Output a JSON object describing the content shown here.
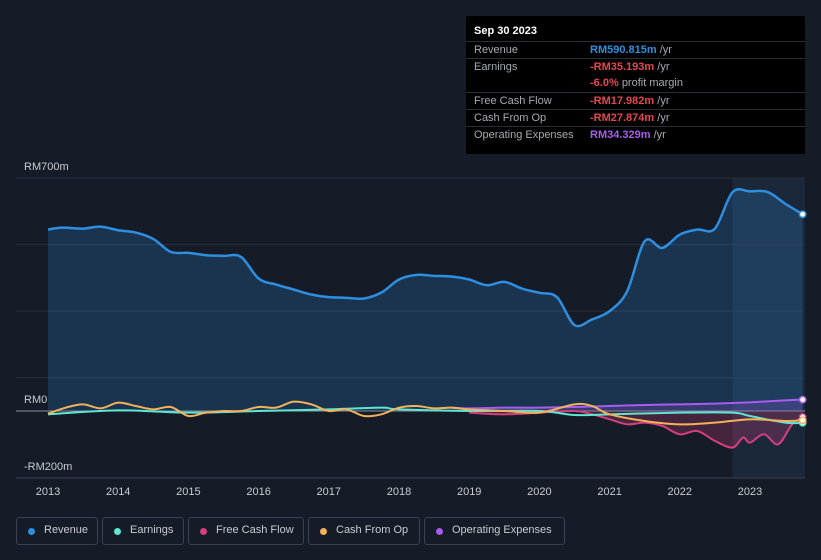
{
  "tooltip": {
    "date": "Sep 30 2023",
    "rows": [
      {
        "label": "Revenue",
        "value": "RM590.815m",
        "unit": "/yr",
        "color": "#2e8fe0"
      },
      {
        "label": "Earnings",
        "value": "-RM35.193m",
        "unit": "/yr",
        "color": "#e5484d"
      },
      {
        "label": "",
        "value": "-6.0%",
        "unit": "profit margin",
        "color": "#e5484d"
      },
      {
        "label": "Free Cash Flow",
        "value": "-RM17.982m",
        "unit": "/yr",
        "color": "#e5484d"
      },
      {
        "label": "Cash From Op",
        "value": "-RM27.874m",
        "unit": "/yr",
        "color": "#e5484d"
      },
      {
        "label": "Operating Expenses",
        "value": "RM34.329m",
        "unit": "/yr",
        "color": "#a85cf0"
      }
    ]
  },
  "legend": [
    {
      "label": "Revenue",
      "color": "#2e8fe0"
    },
    {
      "label": "Earnings",
      "color": "#5ee6d2"
    },
    {
      "label": "Free Cash Flow",
      "color": "#d63f7e"
    },
    {
      "label": "Cash From Op",
      "color": "#f2b15a"
    },
    {
      "label": "Operating Expenses",
      "color": "#a85cf0"
    }
  ],
  "chart_data": {
    "type": "line",
    "title": "",
    "xlabel": "",
    "ylabel": "",
    "y_tick_labels": [
      "RM700m",
      "RM0",
      "-RM200m"
    ],
    "ylim": [
      -200,
      700
    ],
    "xlim": [
      2012.8,
      2023.75
    ],
    "x_ticks": [
      "2013",
      "2014",
      "2015",
      "2016",
      "2017",
      "2018",
      "2019",
      "2020",
      "2021",
      "2022",
      "2023"
    ],
    "highlight_range": [
      2022.75,
      2023.75
    ],
    "series": [
      {
        "name": "Revenue",
        "color": "#2e8fe0",
        "fill": true,
        "x": [
          2013,
          2013.2,
          2013.5,
          2013.75,
          2014,
          2014.25,
          2014.5,
          2014.75,
          2015,
          2015.25,
          2015.5,
          2015.75,
          2016,
          2016.25,
          2016.5,
          2016.75,
          2017,
          2017.25,
          2017.5,
          2017.75,
          2018,
          2018.25,
          2018.5,
          2018.75,
          2019,
          2019.25,
          2019.5,
          2019.75,
          2020,
          2020.25,
          2020.5,
          2020.75,
          2021,
          2021.25,
          2021.5,
          2021.75,
          2022,
          2022.25,
          2022.5,
          2022.75,
          2023,
          2023.25,
          2023.5,
          2023.75
        ],
        "values": [
          545,
          551,
          548,
          554,
          543,
          536,
          517,
          478,
          475,
          468,
          466,
          463,
          398,
          380,
          365,
          350,
          342,
          340,
          338,
          356,
          395,
          409,
          406,
          404,
          395,
          378,
          388,
          368,
          355,
          342,
          258,
          275,
          300,
          360,
          510,
          490,
          530,
          545,
          548,
          657,
          660,
          658,
          623,
          591
        ]
      },
      {
        "name": "Earnings",
        "color": "#5ee6d2",
        "fill": false,
        "x": [
          2013,
          2014,
          2015,
          2016,
          2017,
          2017.75,
          2018,
          2019,
          2020,
          2020.5,
          2021,
          2022,
          2022.75,
          2023,
          2023.5,
          2023.75
        ],
        "values": [
          -10,
          2,
          -5,
          0,
          5,
          10,
          5,
          0,
          0,
          -12,
          -10,
          -5,
          -5,
          -15,
          -35,
          -35
        ]
      },
      {
        "name": "Free Cash Flow",
        "color": "#d63f7e",
        "fill": true,
        "x": [
          2019,
          2019.5,
          2020,
          2020.5,
          2020.75,
          2021,
          2021.25,
          2021.5,
          2021.75,
          2022,
          2022.25,
          2022.5,
          2022.75,
          2022.9,
          2023,
          2023.2,
          2023.4,
          2023.6,
          2023.75
        ],
        "values": [
          -5,
          -10,
          -5,
          0,
          -10,
          -25,
          -40,
          -35,
          -45,
          -70,
          -60,
          -90,
          -110,
          -80,
          -95,
          -70,
          -100,
          -40,
          -18
        ]
      },
      {
        "name": "Cash From Op",
        "color": "#f2b15a",
        "fill": false,
        "x": [
          2013,
          2013.25,
          2013.5,
          2013.75,
          2014,
          2014.25,
          2014.5,
          2014.75,
          2015,
          2015.25,
          2015.5,
          2015.75,
          2016,
          2016.25,
          2016.5,
          2016.75,
          2017,
          2017.25,
          2017.5,
          2017.75,
          2018,
          2018.25,
          2018.5,
          2018.75,
          2019,
          2019.5,
          2020,
          2020.5,
          2020.75,
          2021,
          2021.5,
          2022,
          2022.5,
          2023,
          2023.5,
          2023.75
        ],
        "values": [
          -8,
          10,
          20,
          8,
          25,
          15,
          5,
          12,
          -15,
          -5,
          0,
          0,
          12,
          10,
          28,
          20,
          0,
          5,
          -15,
          -10,
          10,
          15,
          8,
          10,
          5,
          0,
          -5,
          20,
          15,
          -10,
          -30,
          -40,
          -35,
          -25,
          -30,
          -28
        ]
      },
      {
        "name": "Operating Expenses",
        "color": "#a85cf0",
        "fill": true,
        "x": [
          2018.75,
          2019,
          2019.5,
          2020,
          2020.5,
          2021,
          2021.5,
          2022,
          2022.5,
          2023,
          2023.5,
          2023.75
        ],
        "values": [
          10,
          8,
          10,
          10,
          12,
          15,
          18,
          20,
          22,
          26,
          32,
          34
        ]
      }
    ]
  }
}
